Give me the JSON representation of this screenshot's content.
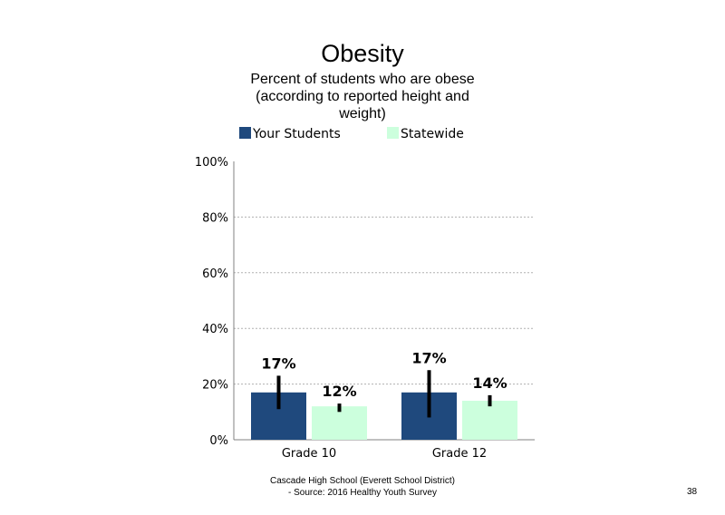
{
  "chart_data": {
    "type": "bar",
    "title": "Obesity",
    "subtitle": "Percent of students who are obese (according to reported height and weight)",
    "categories": [
      "Grade 10",
      "Grade 12"
    ],
    "series": [
      {
        "name": "Your Students",
        "values": [
          17,
          17
        ],
        "labels": [
          "17%",
          "17%"
        ],
        "error_low": [
          11,
          8
        ],
        "error_high": [
          23,
          25
        ],
        "color": "#1f497d"
      },
      {
        "name": "Statewide",
        "values": [
          12,
          14
        ],
        "labels": [
          "12%",
          "14%"
        ],
        "error_low": [
          10,
          12
        ],
        "error_high": [
          13,
          16
        ],
        "color": "#ccffdd"
      }
    ],
    "ylim": [
      0,
      100
    ],
    "yticks": [
      0,
      20,
      40,
      60,
      80,
      100
    ],
    "ytick_labels": [
      "0%",
      "20%",
      "40%",
      "60%",
      "80%",
      "100%"
    ],
    "grid": true,
    "legend_position": "top"
  },
  "footer": {
    "line1": "Cascade High School (Everett School District)",
    "line2": "- Source: 2016 Healthy  Youth Survey"
  },
  "page_number": "38"
}
